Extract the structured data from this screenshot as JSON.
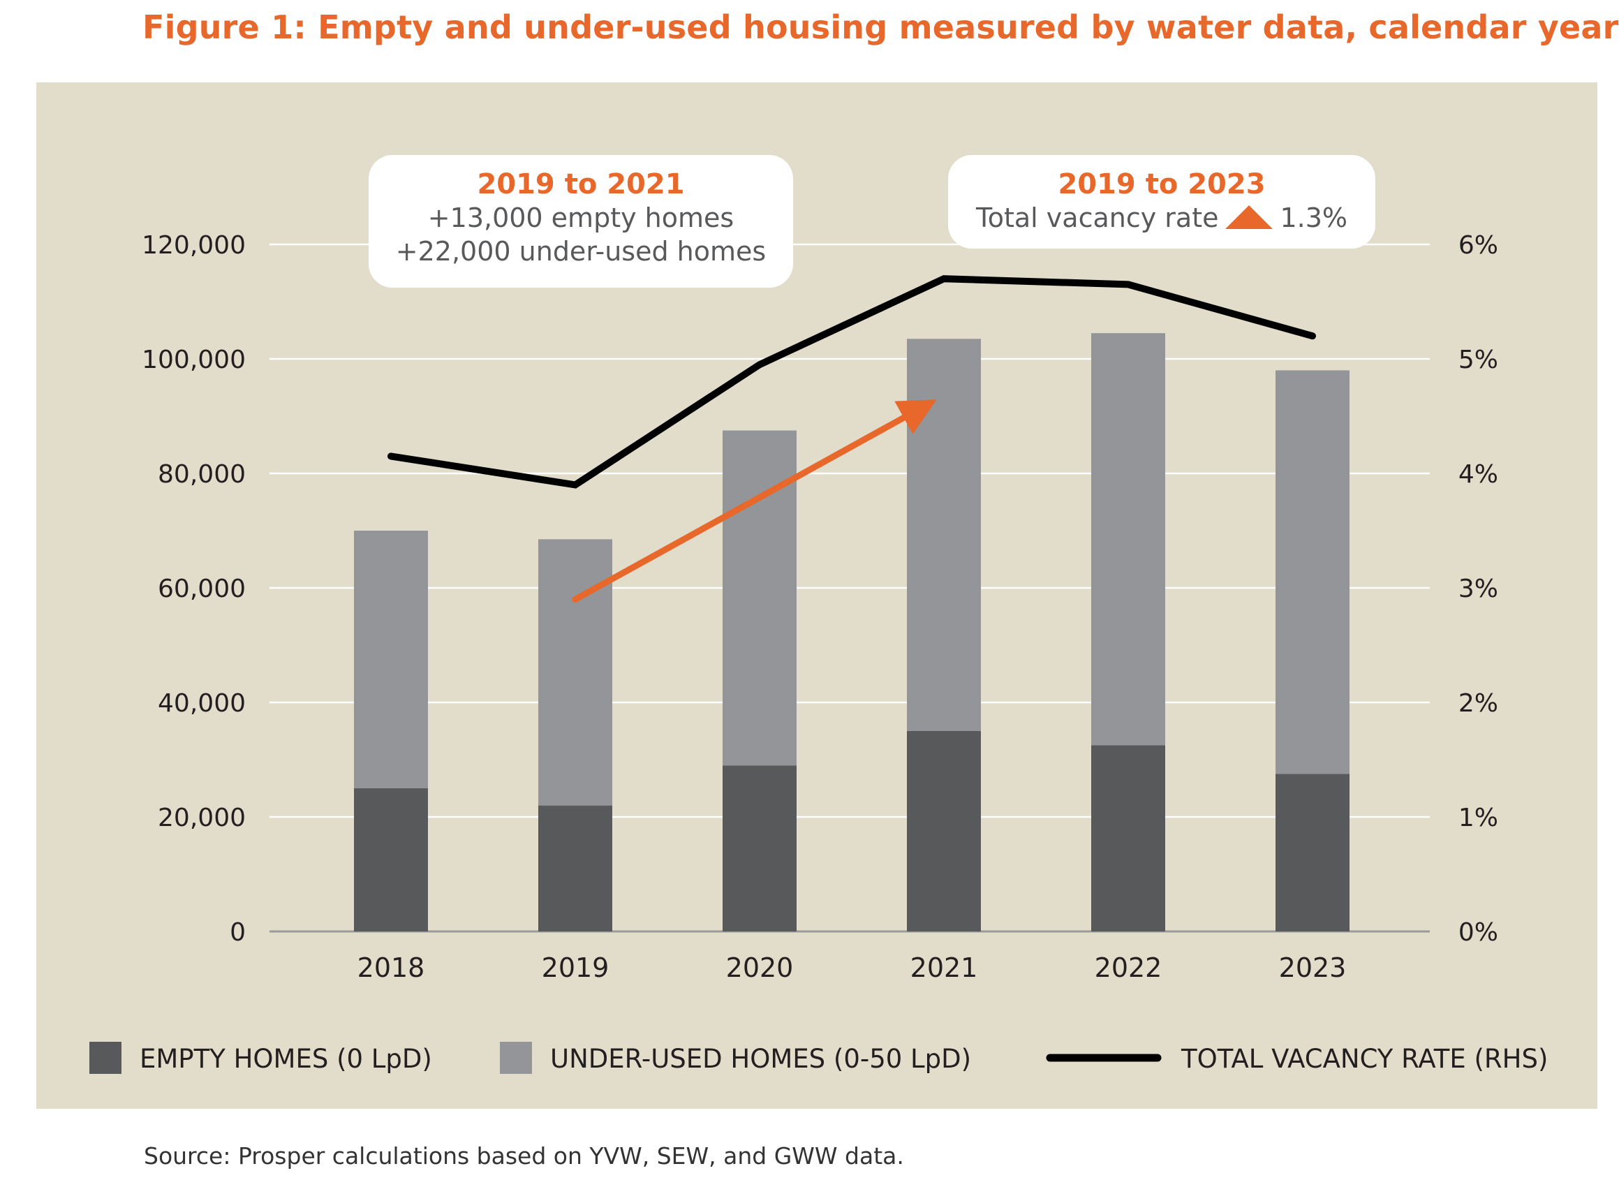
{
  "title": "Figure 1: Empty and under-used housing measured by water data, calendar year",
  "source": "Source: Prosper calculations based on YVW, SEW, and GWW data.",
  "callouts": {
    "left": {
      "head": "2019 to 2021",
      "line1": "+13,000 empty homes",
      "line2": "+22,000 under-used homes"
    },
    "right": {
      "head": "2019 to 2023",
      "label": "Total vacancy rate",
      "value": "1.3%",
      "icon": "up-triangle-icon"
    }
  },
  "legend": {
    "empty": "EMPTY HOMES (0 LpD)",
    "underused": "UNDER-USED HOMES (0-50 LpD)",
    "rate": "TOTAL VACANCY RATE (RHS)"
  },
  "colors": {
    "empty": "#58595b",
    "underused": "#939598",
    "rate": "#000000",
    "accent": "#e8672a",
    "panel": "#e2dccb"
  },
  "chart_data": {
    "type": "bar",
    "stacked": true,
    "categories": [
      "2018",
      "2019",
      "2020",
      "2021",
      "2022",
      "2023"
    ],
    "series": [
      {
        "name": "EMPTY HOMES (0 LpD)",
        "values": [
          25000,
          22000,
          29000,
          35000,
          32500,
          27500
        ]
      },
      {
        "name": "UNDER-USED HOMES (0-50 LpD)",
        "values": [
          45000,
          46500,
          58500,
          68500,
          72000,
          70500
        ]
      }
    ],
    "line_series": {
      "name": "TOTAL VACANCY RATE (RHS)",
      "values": [
        4.15,
        3.9,
        4.95,
        5.7,
        5.65,
        5.2
      ],
      "axis": "right"
    },
    "trend_arrow": {
      "from": [
        "2019",
        2.9
      ],
      "to": [
        "2021",
        4.7
      ],
      "axis": "right"
    },
    "ylim": [
      0,
      120000
    ],
    "yticks": [
      0,
      20000,
      40000,
      60000,
      80000,
      100000,
      120000
    ],
    "ytick_labels": [
      "0",
      "20,000",
      "40,000",
      "60,000",
      "80,000",
      "100,000",
      "120,000"
    ],
    "y2lim": [
      0,
      6
    ],
    "y2ticks": [
      0,
      1,
      2,
      3,
      4,
      5,
      6
    ],
    "y2tick_labels": [
      "0%",
      "1%",
      "2%",
      "3%",
      "4%",
      "5%",
      "6%"
    ],
    "grid": true,
    "legend_position": "bottom"
  }
}
